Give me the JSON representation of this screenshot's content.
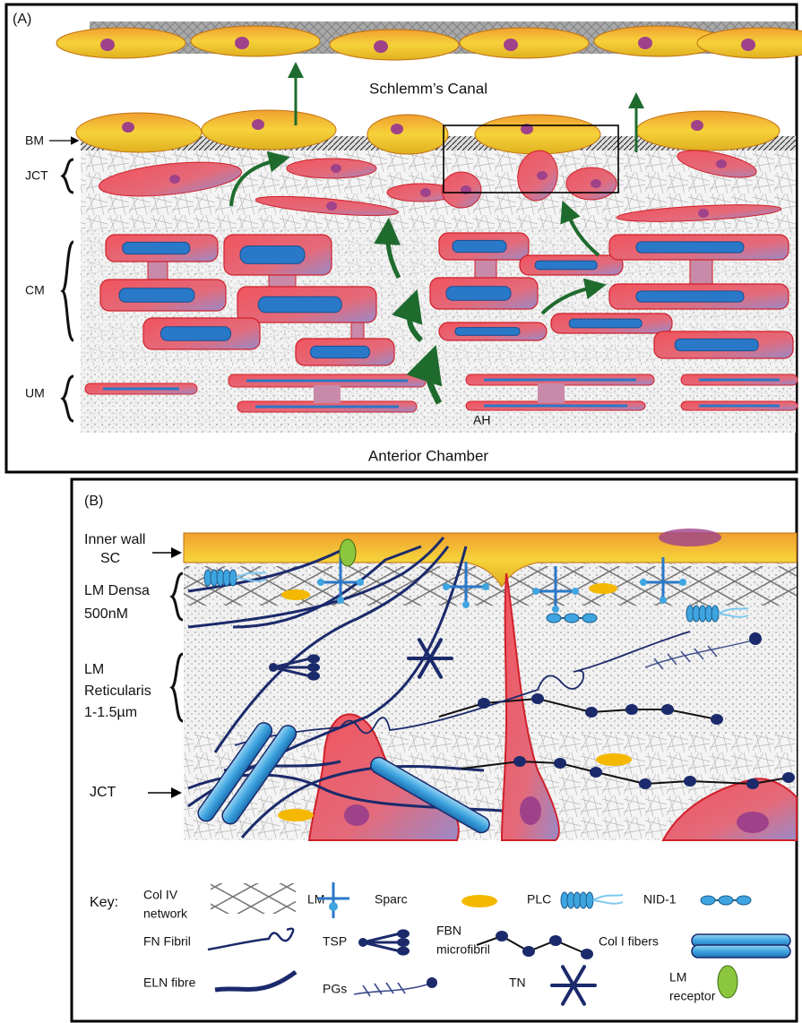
{
  "panel_a": {
    "label": "(A)",
    "canal": "Schlemm’s Canal",
    "layers": [
      "BM",
      "JCT",
      "CM",
      "UM"
    ],
    "flow": "AH",
    "chamber": "Anterior Chamber"
  },
  "panel_b": {
    "label": "(B)",
    "layers": [
      [
        "Inner wall",
        "SC"
      ],
      [
        "LM Densa",
        "500nM"
      ],
      [
        "LM",
        "Reticularis",
        "1-1.5µm"
      ],
      [
        "JCT"
      ]
    ],
    "key": {
      "title": "Key:",
      "items": [
        {
          "label": [
            "Col IV",
            "network"
          ]
        },
        {
          "label": [
            "LM"
          ]
        },
        {
          "label": [
            "Sparc"
          ]
        },
        {
          "label": [
            "PLC"
          ]
        },
        {
          "label": [
            "NID-1"
          ]
        },
        {
          "label": [
            "FN Fibril"
          ]
        },
        {
          "label": [
            "TSP"
          ]
        },
        {
          "label": [
            "FBN",
            "microfibril"
          ]
        },
        {
          "label": [
            "Col I fibers"
          ]
        },
        {
          "label": [
            "ELN fibre"
          ]
        },
        {
          "label": [
            "PGs"
          ]
        },
        {
          "label": [
            "TN"
          ]
        },
        {
          "label": [
            "LM",
            "receptor"
          ]
        }
      ]
    }
  }
}
